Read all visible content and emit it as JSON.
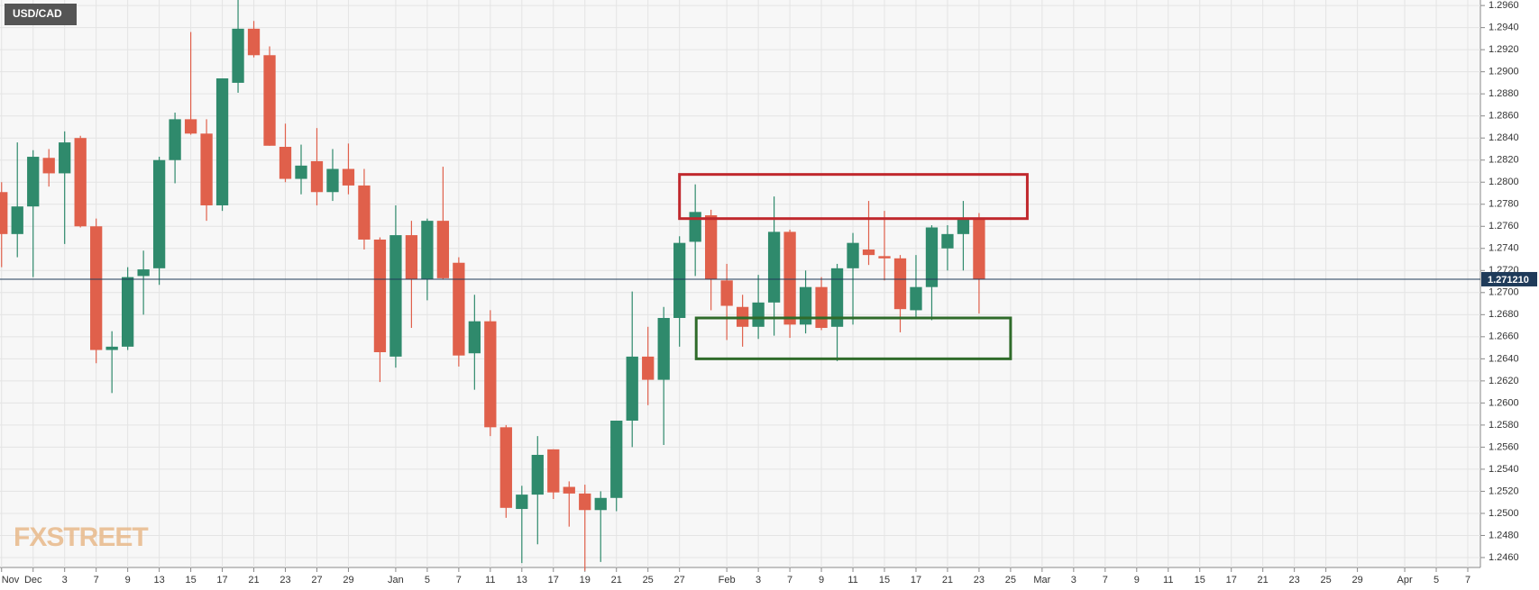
{
  "chart_data": {
    "type": "candlestick",
    "title": "USD/CAD",
    "watermark": "FXSTREET",
    "up_color": "#2f8a6c",
    "down_color": "#e0604b",
    "grid": true,
    "open": [
      1.2791,
      1.2753,
      1.2778,
      1.2822,
      1.2808,
      1.284,
      1.276,
      1.2648,
      1.2651,
      1.2715,
      1.2722,
      1.282,
      1.2857,
      1.2844,
      1.2779,
      1.289,
      1.2939,
      1.2915,
      1.2832,
      1.2803,
      1.2819,
      1.2791,
      1.2812,
      1.2797,
      1.2748,
      1.2642,
      1.2752,
      1.2712,
      1.2765,
      1.2727,
      1.2645,
      1.2674,
      1.2578,
      1.2504,
      1.2517,
      1.2558,
      1.2524,
      1.2518,
      1.2503,
      1.2514,
      1.2584,
      1.2642,
      1.2621,
      1.2677,
      1.2746,
      1.277,
      1.2711,
      1.2687,
      1.2669,
      1.2691,
      1.2755,
      1.2671,
      1.2705,
      1.2669,
      1.2722,
      1.2739,
      1.2733,
      1.2731,
      1.2684,
      1.2705,
      1.274,
      1.2753,
      1.2766
    ],
    "high": [
      1.28,
      1.2836,
      1.2829,
      1.283,
      1.2846,
      1.2842,
      1.2767,
      1.2665,
      1.2723,
      1.2738,
      1.2823,
      1.2863,
      1.2936,
      1.2857,
      1.2894,
      1.2965,
      1.2946,
      1.2923,
      1.2853,
      1.2834,
      1.2849,
      1.283,
      1.2835,
      1.2812,
      1.275,
      1.2779,
      1.2765,
      1.2767,
      1.2814,
      1.2732,
      1.2698,
      1.2684,
      1.258,
      1.2525,
      1.257,
      1.2558,
      1.2529,
      1.2526,
      1.252,
      1.2584,
      1.2701,
      1.2669,
      1.2687,
      1.2751,
      1.2798,
      1.2775,
      1.2726,
      1.2698,
      1.2716,
      1.2787,
      1.2757,
      1.272,
      1.2714,
      1.2726,
      1.2754,
      1.2783,
      1.2774,
      1.2734,
      1.2734,
      1.2761,
      1.2761,
      1.2783,
      1.2772
    ],
    "low": [
      1.2723,
      1.2732,
      1.2714,
      1.2796,
      1.2744,
      1.2759,
      1.2636,
      1.2609,
      1.2648,
      1.268,
      1.2707,
      1.2799,
      1.2843,
      1.2765,
      1.2774,
      1.2881,
      1.2913,
      1.2833,
      1.28,
      1.2789,
      1.2779,
      1.2783,
      1.2789,
      1.2739,
      1.2619,
      1.2632,
      1.2668,
      1.2693,
      1.2712,
      1.2633,
      1.2612,
      1.257,
      1.2496,
      1.2455,
      1.2472,
      1.2513,
      1.2488,
      1.2448,
      1.2456,
      1.2502,
      1.256,
      1.2598,
      1.2562,
      1.2651,
      1.2715,
      1.2684,
      1.2657,
      1.2651,
      1.2658,
      1.2661,
      1.2659,
      1.2663,
      1.2666,
      1.2638,
      1.2671,
      1.2725,
      1.2711,
      1.2664,
      1.2677,
      1.2675,
      1.272,
      1.272,
      1.2681
    ],
    "close": [
      1.2753,
      1.2778,
      1.2823,
      1.2808,
      1.2836,
      1.276,
      1.2648,
      1.2651,
      1.2714,
      1.2721,
      1.282,
      1.2857,
      1.2844,
      1.2779,
      1.2894,
      1.2939,
      1.2915,
      1.2833,
      1.2803,
      1.2815,
      1.2791,
      1.2812,
      1.2797,
      1.2748,
      1.2646,
      1.2752,
      1.2712,
      1.2765,
      1.2713,
      1.2643,
      1.2674,
      1.2578,
      1.2505,
      1.2517,
      1.2553,
      1.2519,
      1.2518,
      1.2503,
      1.2514,
      1.2584,
      1.2642,
      1.2621,
      1.2677,
      1.2745,
      1.2773,
      1.2712,
      1.2688,
      1.2669,
      1.2691,
      1.2755,
      1.2671,
      1.2705,
      1.2668,
      1.2722,
      1.2745,
      1.2734,
      1.2731,
      1.2685,
      1.2705,
      1.2759,
      1.2753,
      1.2766,
      1.2712
    ],
    "xlim": [
      -0.1,
      93.8
    ],
    "ylim": [
      1.2451,
      1.2965
    ],
    "xticks": [
      {
        "value": 0,
        "label": "Nov"
      },
      {
        "value": 2,
        "label": "Dec"
      },
      {
        "value": 4,
        "label": "3"
      },
      {
        "value": 6,
        "label": "7"
      },
      {
        "value": 8,
        "label": "9"
      },
      {
        "value": 10,
        "label": "13"
      },
      {
        "value": 12,
        "label": "15"
      },
      {
        "value": 14,
        "label": "17"
      },
      {
        "value": 16,
        "label": "21"
      },
      {
        "value": 18,
        "label": "23"
      },
      {
        "value": 20,
        "label": "27"
      },
      {
        "value": 22,
        "label": "29"
      },
      {
        "value": 25,
        "label": "Jan"
      },
      {
        "value": 27,
        "label": "5"
      },
      {
        "value": 29,
        "label": "7"
      },
      {
        "value": 31,
        "label": "11"
      },
      {
        "value": 33,
        "label": "13"
      },
      {
        "value": 35,
        "label": "17"
      },
      {
        "value": 37,
        "label": "19"
      },
      {
        "value": 39,
        "label": "21"
      },
      {
        "value": 41,
        "label": "25"
      },
      {
        "value": 43,
        "label": "27"
      },
      {
        "value": 46,
        "label": "Feb"
      },
      {
        "value": 48,
        "label": "3"
      },
      {
        "value": 50,
        "label": "7"
      },
      {
        "value": 52,
        "label": "9"
      },
      {
        "value": 54,
        "label": "11"
      },
      {
        "value": 56,
        "label": "15"
      },
      {
        "value": 58,
        "label": "17"
      },
      {
        "value": 60,
        "label": "21"
      },
      {
        "value": 62,
        "label": "23"
      },
      {
        "value": 64,
        "label": "25"
      },
      {
        "value": 66,
        "label": "Mar"
      },
      {
        "value": 68,
        "label": "3"
      },
      {
        "value": 70,
        "label": "7"
      },
      {
        "value": 72,
        "label": "9"
      },
      {
        "value": 74,
        "label": "11"
      },
      {
        "value": 76,
        "label": "15"
      },
      {
        "value": 78,
        "label": "17"
      },
      {
        "value": 80,
        "label": "21"
      },
      {
        "value": 82,
        "label": "23"
      },
      {
        "value": 84,
        "label": "25"
      },
      {
        "value": 86,
        "label": "29"
      },
      {
        "value": 89,
        "label": "Apr"
      },
      {
        "value": 91,
        "label": "5"
      },
      {
        "value": 93,
        "label": "7"
      }
    ],
    "yticks": [
      {
        "value": 1.246,
        "label": "1.2460"
      },
      {
        "value": 1.248,
        "label": "1.2480"
      },
      {
        "value": 1.25,
        "label": "1.2500"
      },
      {
        "value": 1.252,
        "label": "1.2520"
      },
      {
        "value": 1.254,
        "label": "1.2540"
      },
      {
        "value": 1.256,
        "label": "1.2560"
      },
      {
        "value": 1.258,
        "label": "1.2580"
      },
      {
        "value": 1.26,
        "label": "1.2600"
      },
      {
        "value": 1.262,
        "label": "1.2620"
      },
      {
        "value": 1.264,
        "label": "1.2640"
      },
      {
        "value": 1.266,
        "label": "1.2660"
      },
      {
        "value": 1.268,
        "label": "1.2680"
      },
      {
        "value": 1.27,
        "label": "1.2700"
      },
      {
        "value": 1.272,
        "label": "1.2720"
      },
      {
        "value": 1.274,
        "label": "1.2740"
      },
      {
        "value": 1.276,
        "label": "1.2760"
      },
      {
        "value": 1.278,
        "label": "1.2780"
      },
      {
        "value": 1.28,
        "label": "1.2800"
      },
      {
        "value": 1.282,
        "label": "1.2820"
      },
      {
        "value": 1.284,
        "label": "1.2840"
      },
      {
        "value": 1.286,
        "label": "1.2860"
      },
      {
        "value": 1.288,
        "label": "1.2880"
      },
      {
        "value": 1.29,
        "label": "1.2900"
      },
      {
        "value": 1.292,
        "label": "1.2920"
      },
      {
        "value": 1.294,
        "label": "1.2940"
      },
      {
        "value": 1.296,
        "label": "1.2960"
      }
    ],
    "current_price": {
      "value": 1.27121,
      "label": "1.271210"
    },
    "zones": [
      {
        "color": "#c0282d",
        "x": [
          43,
          65.06
        ],
        "y": [
          1.2767,
          1.2807
        ]
      },
      {
        "color": "#2f6b2a",
        "x": [
          44.06,
          64
        ],
        "y": [
          1.264,
          1.2677
        ]
      }
    ]
  }
}
